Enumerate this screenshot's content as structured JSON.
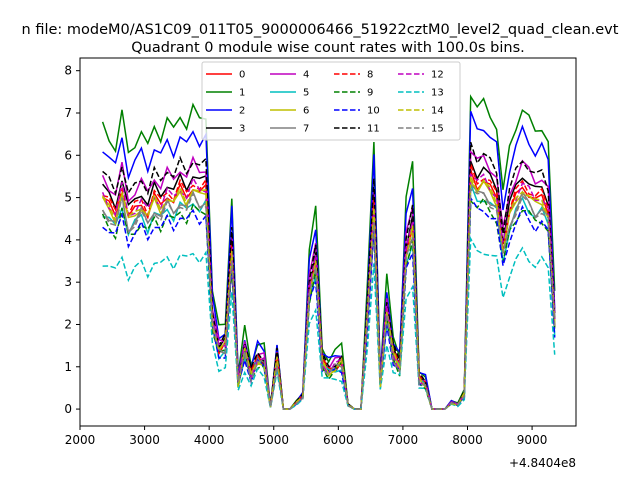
{
  "chart_data": {
    "type": "line",
    "suptitle": "n file: modeM0/AS1C09_011T05_9000006466_51922cztM0_level2_quad_clean.evt",
    "title": "Quadrant 0 module wise count rates with 100.0s bins.",
    "xlabel": "",
    "ylabel": "",
    "offset_text": "+4.8404e8",
    "xlim": [
      2000,
      9680
    ],
    "ylim": [
      -0.4,
      8.3
    ],
    "xticks": [
      2000,
      3000,
      4000,
      5000,
      6000,
      7000,
      8000,
      9000
    ],
    "yticks": [
      0,
      1,
      2,
      3,
      4,
      5,
      6,
      7,
      8
    ],
    "grid": false,
    "legend_position": "upper-center",
    "legend_columns": 4,
    "x": [
      2350,
      2450,
      2550,
      2650,
      2750,
      2850,
      2950,
      3050,
      3150,
      3250,
      3350,
      3450,
      3550,
      3650,
      3750,
      3850,
      3950,
      4050,
      4150,
      4250,
      4350,
      4450,
      4550,
      4650,
      4750,
      4850,
      4950,
      5050,
      5150,
      5250,
      5350,
      5450,
      5550,
      5650,
      5750,
      5850,
      5950,
      6050,
      6150,
      6250,
      6350,
      6450,
      6550,
      6650,
      6750,
      6850,
      6950,
      7050,
      7150,
      7250,
      7350,
      7450,
      7550,
      7650,
      7750,
      7850,
      7950,
      8050,
      8150,
      8250,
      8350,
      8450,
      8550,
      8650,
      8750,
      8850,
      8950,
      9050,
      9150,
      9250,
      9350
    ],
    "base_profile": [
      5.0,
      4.8,
      4.6,
      5.2,
      4.5,
      4.7,
      4.9,
      4.6,
      5.0,
      4.8,
      5.1,
      4.9,
      5.2,
      5.0,
      5.3,
      5.1,
      5.2,
      2.1,
      1.4,
      1.5,
      3.8,
      0.6,
      1.4,
      0.8,
      1.2,
      1.1,
      0.05,
      1.2,
      0.0,
      0.0,
      0.15,
      0.3,
      2.8,
      3.5,
      1.1,
      0.9,
      1.0,
      1.1,
      0.1,
      0.0,
      0.0,
      2.2,
      4.8,
      0.6,
      2.3,
      1.3,
      1.0,
      3.7,
      4.3,
      0.7,
      0.6,
      0.0,
      0.0,
      0.0,
      0.15,
      0.1,
      0.35,
      5.6,
      5.3,
      5.4,
      5.2,
      5.0,
      3.8,
      4.6,
      5.0,
      5.3,
      5.1,
      4.9,
      5.0,
      4.7,
      2.0
    ],
    "series": [
      {
        "name": "0",
        "color": "#ff0000",
        "dash": "solid",
        "scale": 1.0
      },
      {
        "name": "1",
        "color": "#008000",
        "dash": "solid",
        "scale": 1.34
      },
      {
        "name": "2",
        "color": "#0000ff",
        "dash": "solid",
        "scale": 1.24
      },
      {
        "name": "3",
        "color": "#000000",
        "dash": "solid",
        "scale": 1.05
      },
      {
        "name": "4",
        "color": "#bf00bf",
        "dash": "solid",
        "scale": 1.1
      },
      {
        "name": "5",
        "color": "#00bfbf",
        "dash": "solid",
        "scale": 0.93
      },
      {
        "name": "6",
        "color": "#bfbf00",
        "dash": "solid",
        "scale": 0.98
      },
      {
        "name": "7",
        "color": "#808080",
        "dash": "solid",
        "scale": 0.95
      },
      {
        "name": "8",
        "color": "#ff0000",
        "dash": "dashed",
        "scale": 1.02
      },
      {
        "name": "9",
        "color": "#008000",
        "dash": "dashed",
        "scale": 0.9
      },
      {
        "name": "10",
        "color": "#0000ff",
        "dash": "dashed",
        "scale": 0.88
      },
      {
        "name": "11",
        "color": "#000000",
        "dash": "dashed",
        "scale": 1.12
      },
      {
        "name": "12",
        "color": "#bf00bf",
        "dash": "dashed",
        "scale": 1.01
      },
      {
        "name": "13",
        "color": "#00bfbf",
        "dash": "dashed",
        "scale": 0.7
      },
      {
        "name": "14",
        "color": "#bfbf00",
        "dash": "dashed",
        "scale": 0.99
      },
      {
        "name": "15",
        "color": "#808080",
        "dash": "dashed",
        "scale": 0.94
      }
    ]
  }
}
